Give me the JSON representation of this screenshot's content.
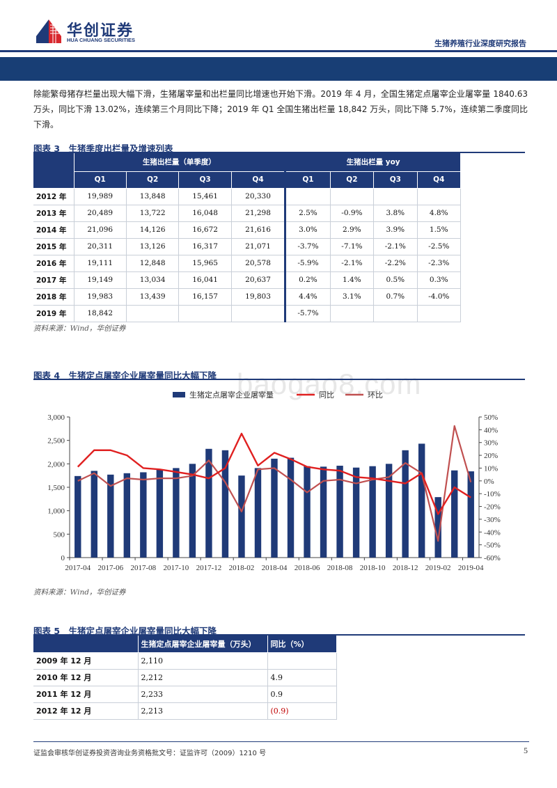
{
  "header": {
    "logo_cn": "华创证券",
    "logo_en": "HUA CHUANG SECURITIES",
    "report_title": "生猪养殖行业深度研究报告"
  },
  "paragraph": "除能繁母猪存栏量出现大幅下滑，生猪屠宰量和出栏量同比增速也开始下滑。2019 年 4 月，全国生猪定点屠宰企业屠宰量 1840.63 万头，同比下滑 13.02%，连续第三个月同比下降；2019 年 Q1 全国生猪出栏量 18,842 万头，同比下降 5.7%，连续第二季度同比下滑。",
  "fig3": {
    "title": "图表 3　生猪季度出栏量及增速列表",
    "group_headers": [
      "生猪出栏量（单季度）",
      "生猪出栏量 yoy"
    ],
    "quarters": [
      "Q1",
      "Q2",
      "Q3",
      "Q4",
      "Q1",
      "Q2",
      "Q3",
      "Q4"
    ],
    "rows": [
      {
        "year": "2012 年",
        "cells": [
          "19,989",
          "13,848",
          "15,461",
          "20,330",
          "",
          "",
          "",
          ""
        ]
      },
      {
        "year": "2013 年",
        "cells": [
          "20,489",
          "13,722",
          "16,048",
          "21,298",
          "2.5%",
          "-0.9%",
          "3.8%",
          "4.8%"
        ]
      },
      {
        "year": "2014 年",
        "cells": [
          "21,096",
          "14,126",
          "16,672",
          "21,616",
          "3.0%",
          "2.9%",
          "3.9%",
          "1.5%"
        ]
      },
      {
        "year": "2015 年",
        "cells": [
          "20,311",
          "13,126",
          "16,317",
          "21,071",
          "-3.7%",
          "-7.1%",
          "-2.1%",
          "-2.5%"
        ]
      },
      {
        "year": "2016 年",
        "cells": [
          "19,111",
          "12,848",
          "15,965",
          "20,578",
          "-5.9%",
          "-2.1%",
          "-2.2%",
          "-2.3%"
        ]
      },
      {
        "year": "2017 年",
        "cells": [
          "19,149",
          "13,034",
          "16,041",
          "20,637",
          "0.2%",
          "1.4%",
          "0.5%",
          "0.3%"
        ]
      },
      {
        "year": "2018 年",
        "cells": [
          "19,983",
          "13,439",
          "16,157",
          "19,803",
          "4.4%",
          "3.1%",
          "0.7%",
          "-4.0%"
        ]
      },
      {
        "year": "2019 年",
        "cells": [
          "18,842",
          "",
          "",
          "",
          "-5.7%",
          "",
          "",
          ""
        ]
      }
    ],
    "source": "资料来源：Wind，华创证券"
  },
  "fig4": {
    "title": "图表 4　生猪定点屠宰企业屠宰量同比大幅下降",
    "source": "资料来源：Wind，华创证券"
  },
  "watermark": "baogao8.com",
  "chart_data": {
    "type": "bar",
    "title": "生猪定点屠宰企业屠宰量同比大幅下降",
    "categories": [
      "2017-04",
      "2017-05",
      "2017-06",
      "2017-07",
      "2017-08",
      "2017-09",
      "2017-10",
      "2017-11",
      "2017-12",
      "2018-01",
      "2018-02",
      "2018-03",
      "2018-04",
      "2018-05",
      "2018-06",
      "2018-07",
      "2018-08",
      "2018-09",
      "2018-10",
      "2018-11",
      "2018-12",
      "2019-01",
      "2019-02",
      "2019-03",
      "2019-04"
    ],
    "x_tick_labels": [
      "2017-04",
      "2017-06",
      "2017-08",
      "2017-10",
      "2017-12",
      "2018-02",
      "2018-04",
      "2018-06",
      "2018-08",
      "2018-10",
      "2018-12",
      "2019-02",
      "2019-04"
    ],
    "series": [
      {
        "name": "生猪定点屠宰企业屠宰量",
        "type": "bar",
        "axis": "left",
        "color": "#1f3a78",
        "values": [
          1740,
          1850,
          1770,
          1800,
          1820,
          1880,
          1910,
          2000,
          2320,
          2290,
          1750,
          1910,
          2110,
          2130,
          1950,
          1940,
          1960,
          1920,
          1950,
          2000,
          2290,
          2430,
          1290,
          1860,
          1840
        ]
      },
      {
        "name": "同比",
        "type": "line",
        "axis": "right",
        "color": "#e02020",
        "values": [
          11,
          24,
          24,
          20,
          10,
          9,
          7,
          5,
          2,
          10,
          37,
          12,
          22,
          17,
          11,
          9,
          8,
          3,
          2,
          0,
          -2,
          6,
          -26,
          -5,
          -13
        ]
      },
      {
        "name": "环比",
        "type": "line",
        "axis": "right",
        "color": "#c05050",
        "values": [
          0,
          6,
          -4,
          2,
          1,
          2,
          2,
          4,
          16,
          -1,
          -24,
          9,
          10,
          1,
          -9,
          0,
          1,
          -2,
          1,
          3,
          14,
          6,
          -47,
          43,
          -1
        ]
      }
    ],
    "ylim_left": [
      0,
      3000
    ],
    "yticks_left": [
      "3,000",
      "2,500",
      "2,000",
      "1,500",
      "1,000",
      "500",
      "0"
    ],
    "ylim_right": [
      -60,
      50
    ],
    "yticks_right": [
      "50%",
      "40%",
      "30%",
      "20%",
      "10%",
      "0%",
      "-10%",
      "-20%",
      "-30%",
      "-40%",
      "-50%",
      "-60%"
    ],
    "legend": "top-center"
  },
  "fig5": {
    "title": "图表 5　生猪定点屠宰企业屠宰量同比大幅下降",
    "headers": [
      "",
      "生猪定点屠宰企业屠宰量（万头）",
      "同比（%）"
    ],
    "rows": [
      {
        "period": "2009 年 12 月",
        "value": "2,110",
        "yoy": "",
        "negative": false
      },
      {
        "period": "2010 年 12 月",
        "value": "2,212",
        "yoy": "4.9",
        "negative": false
      },
      {
        "period": "2011 年 12 月",
        "value": "2,233",
        "yoy": "0.9",
        "negative": false
      },
      {
        "period": "2012 年 12 月",
        "value": "2,213",
        "yoy": "(0.9)",
        "negative": true
      }
    ]
  },
  "footer": {
    "text": "证监会审核华创证券投资咨询业务资格批文号：证监许可（2009）1210 号",
    "page": "5"
  }
}
